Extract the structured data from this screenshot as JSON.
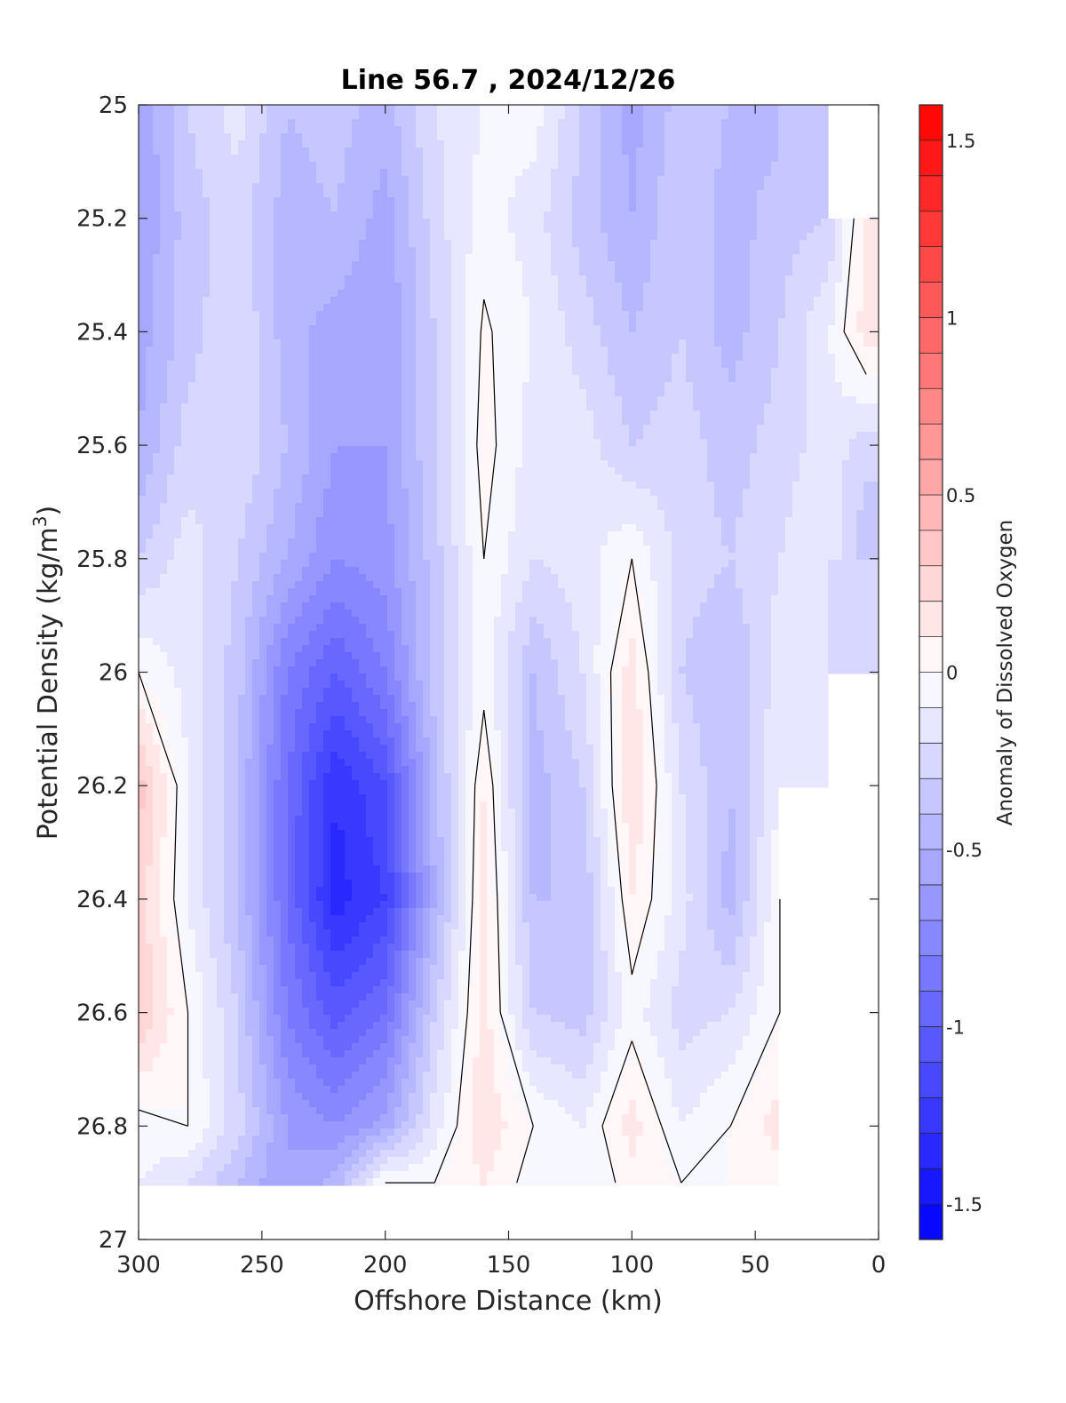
{
  "chart_data": {
    "type": "heatmap",
    "title": "Line 56.7 , 2024/12/26",
    "xlabel": "Offshore Distance (km)",
    "ylabel": "Potential Density (kg/m",
    "ylabel_superscript": "3",
    "ylabel_suffix": ")",
    "xlim": [
      300,
      0
    ],
    "ylim": [
      25,
      27
    ],
    "y_reversed": true,
    "x_ticks": [
      300,
      250,
      200,
      150,
      100,
      50,
      0
    ],
    "x_tick_labels": [
      "300",
      "250",
      "200",
      "150",
      "100",
      "50",
      "0"
    ],
    "y_ticks": [
      25,
      25.2,
      25.4,
      25.6,
      25.8,
      26,
      26.2,
      26.4,
      26.6,
      26.8,
      27
    ],
    "y_tick_labels": [
      "25",
      "25.2",
      "25.4",
      "25.6",
      "25.8",
      "26",
      "26.2",
      "26.4",
      "26.6",
      "26.8",
      "27"
    ],
    "colorbar": {
      "label": "Anomaly of Dissolved Oxygen",
      "range": [
        -1.6,
        1.6
      ],
      "step": 0.1,
      "ticks": [
        -1.5,
        -1,
        -0.5,
        0,
        0.5,
        1,
        1.5
      ],
      "tick_labels": [
        "-1.5",
        "-1",
        "-0.5",
        "0",
        "0.5",
        "1",
        "1.5"
      ],
      "neg_color": "#0000ff",
      "pos_color": "#ff0000"
    },
    "x": [
      300,
      280,
      260,
      240,
      220,
      200,
      180,
      160,
      140,
      120,
      100,
      80,
      60,
      40,
      20,
      5
    ],
    "y": [
      25.0,
      25.2,
      25.4,
      25.6,
      25.8,
      26.0,
      26.2,
      26.4,
      26.6,
      26.8,
      26.9
    ],
    "z": [
      [
        -0.6,
        -0.3,
        -0.15,
        -0.4,
        -0.35,
        -0.45,
        -0.2,
        -0.1,
        -0.05,
        -0.3,
        -0.55,
        -0.35,
        -0.4,
        -0.45,
        null,
        null
      ],
      [
        -0.6,
        -0.35,
        -0.25,
        -0.45,
        -0.4,
        -0.55,
        -0.25,
        -0.05,
        -0.15,
        -0.35,
        -0.5,
        -0.3,
        -0.45,
        -0.35,
        -0.3,
        0.15
      ],
      [
        -0.55,
        -0.35,
        -0.2,
        -0.45,
        -0.55,
        -0.6,
        -0.3,
        0.02,
        -0.1,
        -0.25,
        -0.4,
        -0.3,
        -0.45,
        -0.3,
        -0.1,
        0.15
      ],
      [
        -0.5,
        -0.25,
        -0.2,
        -0.4,
        -0.6,
        -0.6,
        -0.3,
        0.05,
        -0.15,
        -0.15,
        -0.3,
        -0.25,
        -0.35,
        -0.25,
        -0.15,
        -0.25
      ],
      [
        -0.3,
        -0.15,
        -0.3,
        -0.5,
        -0.7,
        -0.65,
        -0.35,
        0.0,
        -0.2,
        -0.15,
        0.0,
        -0.25,
        -0.3,
        -0.2,
        -0.1,
        -0.4
      ],
      [
        0.0,
        -0.15,
        -0.35,
        -0.8,
        -1.0,
        -0.8,
        -0.35,
        -0.05,
        -0.4,
        -0.2,
        0.15,
        -0.3,
        -0.4,
        -0.15,
        -0.15,
        null
      ],
      [
        0.35,
        -0.1,
        -0.4,
        -0.9,
        -1.3,
        -1.1,
        -0.45,
        0.1,
        -0.45,
        -0.3,
        0.2,
        -0.2,
        -0.4,
        -0.1,
        null,
        null
      ],
      [
        0.25,
        -0.1,
        -0.4,
        -0.9,
        -1.35,
        -1.2,
        -0.5,
        0.15,
        -0.4,
        -0.4,
        0.1,
        -0.15,
        -0.45,
        0.0,
        null,
        null
      ],
      [
        0.3,
        0.0,
        -0.3,
        -0.8,
        -1.05,
        -0.9,
        -0.3,
        0.15,
        -0.3,
        -0.35,
        -0.05,
        -0.25,
        -0.2,
        0.0,
        null,
        null
      ],
      [
        -0.05,
        0.0,
        -0.25,
        -0.6,
        -0.7,
        -0.55,
        -0.15,
        0.18,
        0.0,
        -0.1,
        0.15,
        -0.1,
        0.0,
        0.15,
        null,
        null
      ],
      [
        -0.1,
        -0.2,
        -0.4,
        -0.6,
        -0.45,
        0.0,
        0.0,
        0.1,
        -0.05,
        -0.1,
        0.05,
        0.0,
        0.0,
        0.05,
        null,
        null
      ]
    ]
  }
}
